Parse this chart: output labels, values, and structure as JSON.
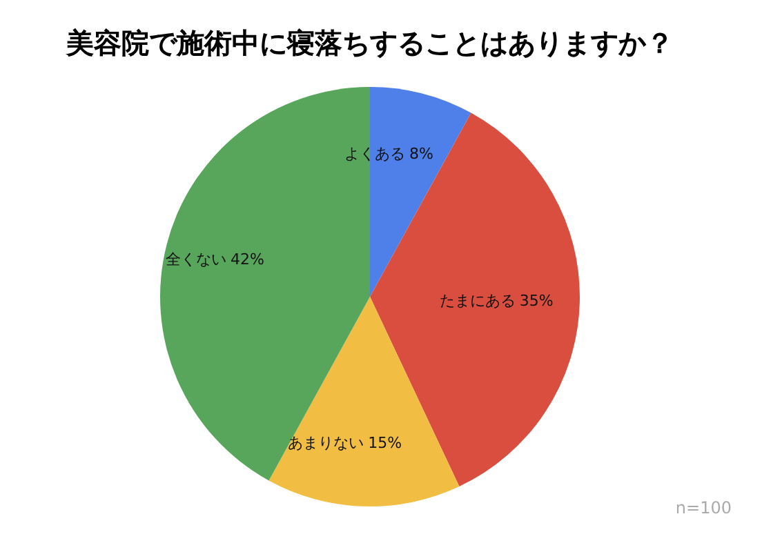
{
  "chart_data": {
    "type": "pie",
    "title": "美容院で施術中に寝落ちすることはありますか？",
    "categories": [
      "よくある",
      "たまにある",
      "あまりない",
      "全くない"
    ],
    "values": [
      8,
      35,
      15,
      42
    ],
    "colors": [
      "#4f80ea",
      "#d94e3f",
      "#f1bd42",
      "#58a55c"
    ],
    "value_labels": [
      "8%",
      "35%",
      "15%",
      "42%"
    ],
    "annotations": [
      "n=100"
    ]
  }
}
